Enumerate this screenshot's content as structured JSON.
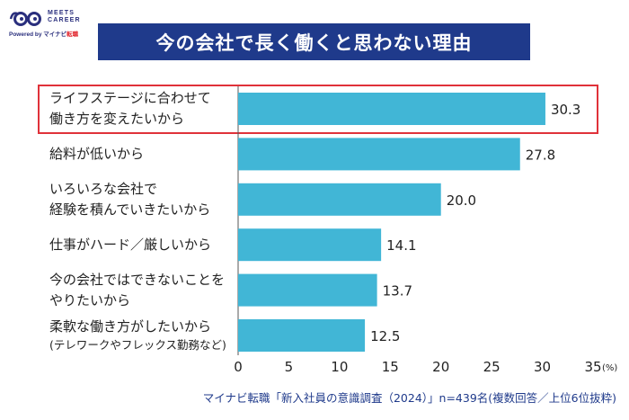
{
  "logo": {
    "brand": "MEETS CAREER",
    "powered_by": "Powered by",
    "partner": "マイナビ",
    "partner_suffix": "転職"
  },
  "title": "今の会社で長く働くと思わない理由",
  "source": "マイナビ転職「新入社員の意識調査（2024）」n=439名(複数回答／上位6位抜粋)",
  "colors": {
    "bar": "#41b6d6",
    "banner": "#1f3a8b",
    "highlight": "#e0323a",
    "source_text": "#1f3a8b"
  },
  "chart_data": {
    "type": "bar",
    "orientation": "horizontal",
    "categories": [
      "ライフステージに合わせて\n働き方を変えたいから",
      "給料が低いから",
      "いろいろな会社で\n経験を積んでいきたいから",
      "仕事がハード／厳しいから",
      "今の会社ではできないことを\nやりたいから",
      "柔軟な働き方がしたいから\n(テレワークやフレックス勤務など)"
    ],
    "values": [
      30.3,
      27.8,
      20.0,
      14.1,
      13.7,
      12.5
    ],
    "value_labels": [
      "30.3",
      "27.8",
      "20.0",
      "14.1",
      "13.7",
      "12.5"
    ],
    "xlim": [
      0,
      35
    ],
    "xticks": [
      "0",
      "5",
      "10",
      "15",
      "20",
      "25",
      "30",
      "35"
    ],
    "unit_label": "(%)",
    "highlighted_category_index": 0,
    "grid": false
  }
}
